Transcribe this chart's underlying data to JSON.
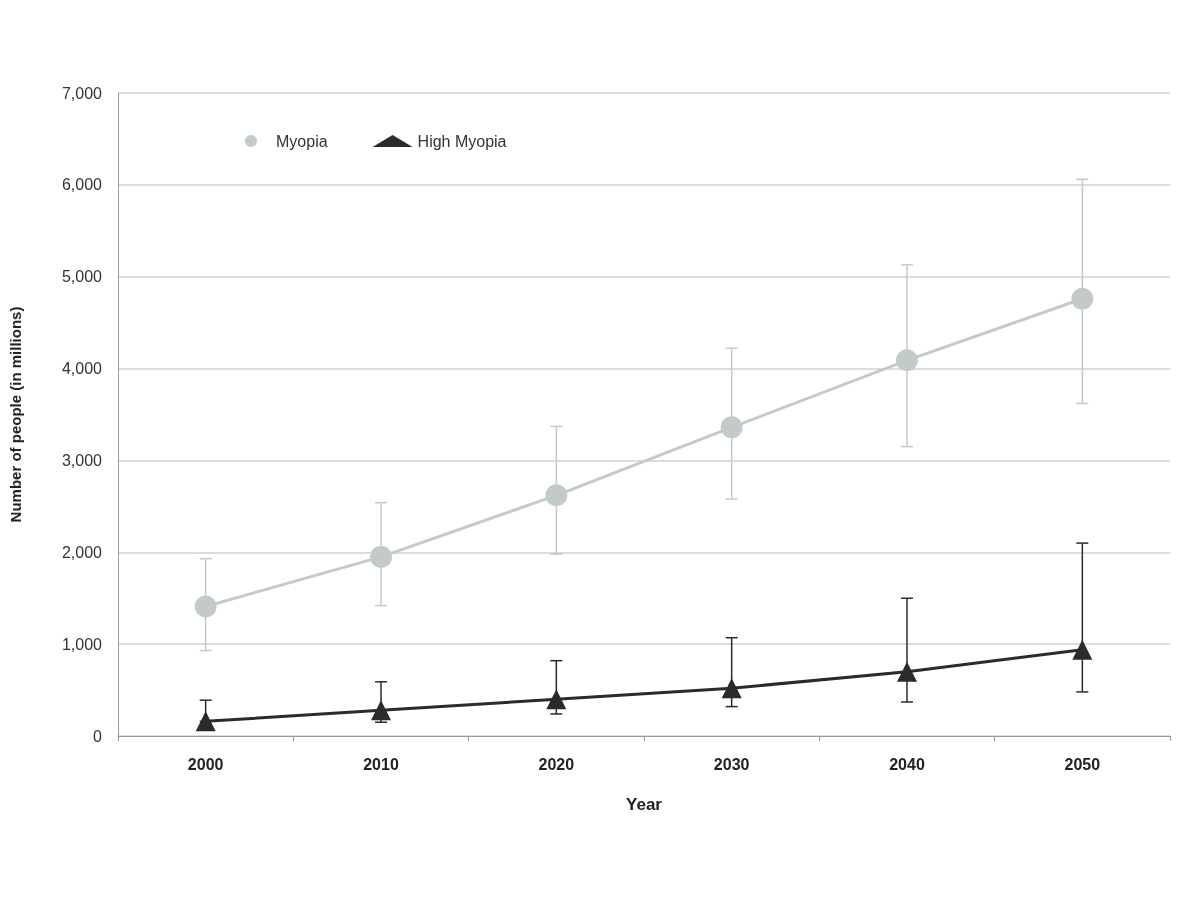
{
  "chart_data": {
    "type": "line",
    "xlabel": "Year",
    "ylabel": "Number of people (in millions)",
    "categories": [
      "2000",
      "2010",
      "2020",
      "2030",
      "2040",
      "2050"
    ],
    "series": [
      {
        "name": "Myopia",
        "color": "#c3cbc7",
        "marker": "circle",
        "values": [
          1410,
          1950,
          2620,
          3360,
          4090,
          4760
        ],
        "errors": [
          [
            930,
            1930
          ],
          [
            1420,
            2540
          ],
          [
            1980,
            3370
          ],
          [
            2580,
            4220
          ],
          [
            3150,
            5130
          ],
          [
            3620,
            6060
          ]
        ]
      },
      {
        "name": "High Myopia",
        "color": "#2b2b2b",
        "marker": "triangle",
        "values": [
          160,
          280,
          400,
          520,
          700,
          940
        ],
        "errors": [
          [
            160,
            390
          ],
          [
            150,
            590
          ],
          [
            240,
            820
          ],
          [
            320,
            1070
          ],
          [
            370,
            1500
          ],
          [
            480,
            2100
          ]
        ]
      }
    ],
    "ylim": [
      0,
      7000
    ],
    "yticks": [
      0,
      {
        "value": 1000,
        "label": "1,000"
      },
      {
        "value": 2000,
        "label": "2,000"
      },
      {
        "value": 3000,
        "label": "3,000"
      },
      {
        "value": 4000,
        "label": "4,000"
      },
      {
        "value": 5000,
        "label": "5,000"
      },
      {
        "value": 6000,
        "label": "6,000"
      },
      {
        "value": 7000,
        "label": "7,000"
      }
    ],
    "grid": "y",
    "legend": "top left",
    "line_style": "solid"
  }
}
